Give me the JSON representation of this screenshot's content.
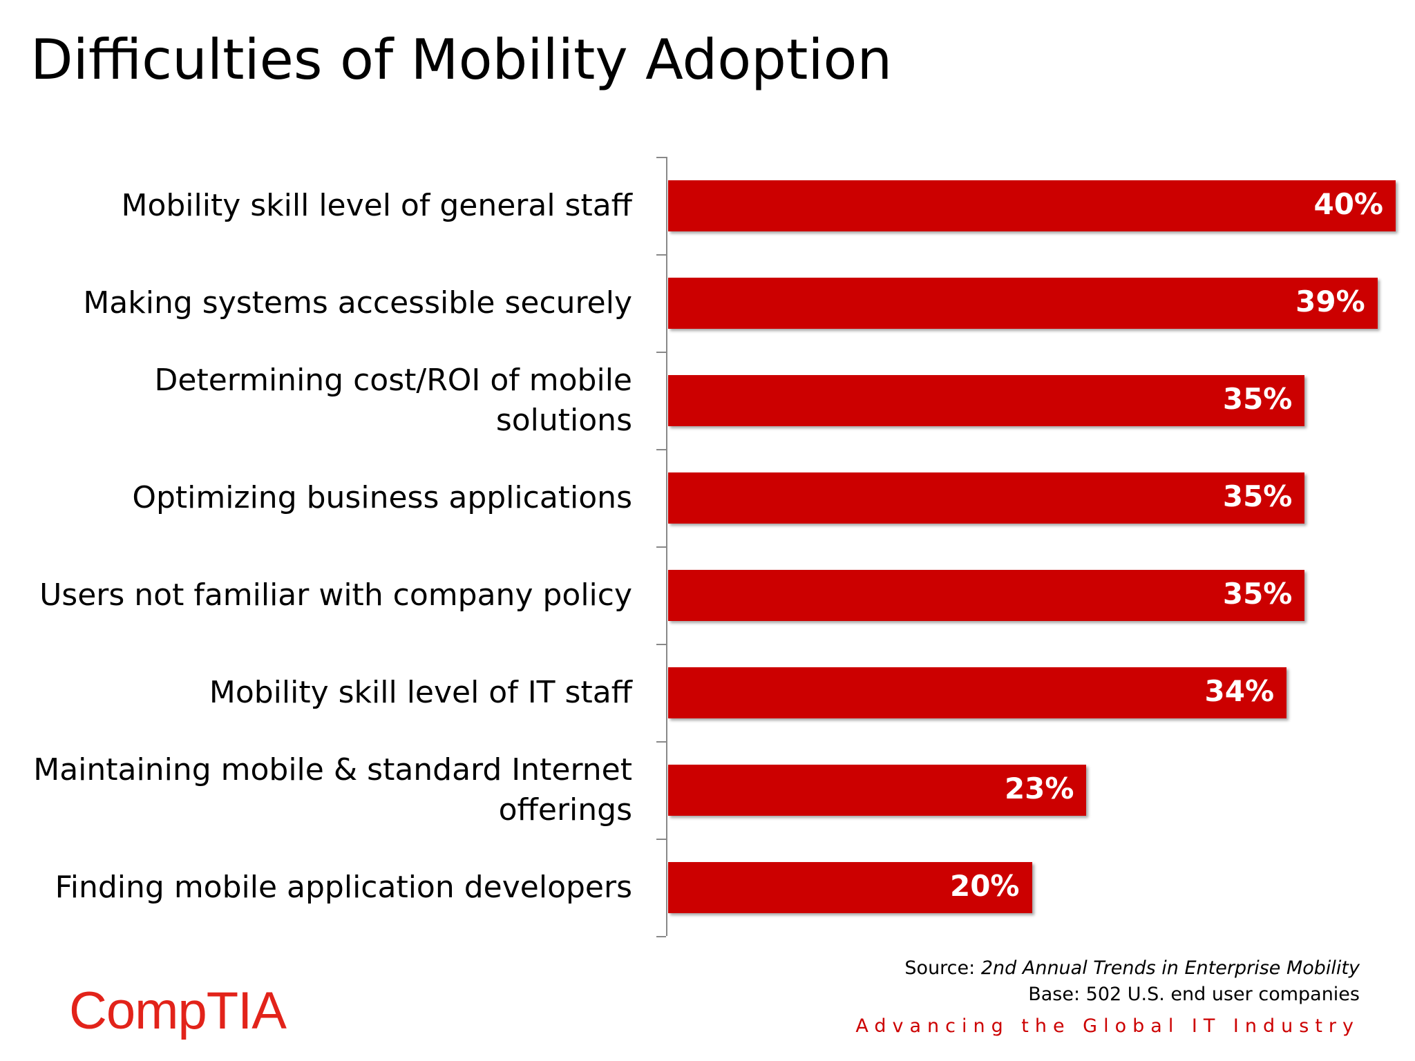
{
  "chart_data": {
    "type": "bar",
    "orientation": "horizontal",
    "title": "Difficulties of Mobility Adoption",
    "categories": [
      "Mobility skill level of general staff",
      "Making systems accessible securely",
      "Determining cost/ROI of mobile solutions",
      "Optimizing business applications",
      "Users not familiar with company policy",
      "Mobility skill level of IT staff",
      "Maintaining mobile & standard Internet offerings",
      "Finding mobile application developers"
    ],
    "values": [
      40,
      39,
      35,
      35,
      35,
      34,
      23,
      20
    ],
    "value_labels": [
      "40%",
      "39%",
      "35%",
      "35%",
      "35%",
      "34%",
      "23%",
      "20%"
    ],
    "color": "#cc0000"
  },
  "footer": {
    "source_label": "Source:",
    "source_title": "2nd Annual Trends in Enterprise Mobility",
    "base": "Base: 502 U.S. end user companies",
    "logo": "CompTIA",
    "tagline": "Advancing the Global IT Industry"
  }
}
